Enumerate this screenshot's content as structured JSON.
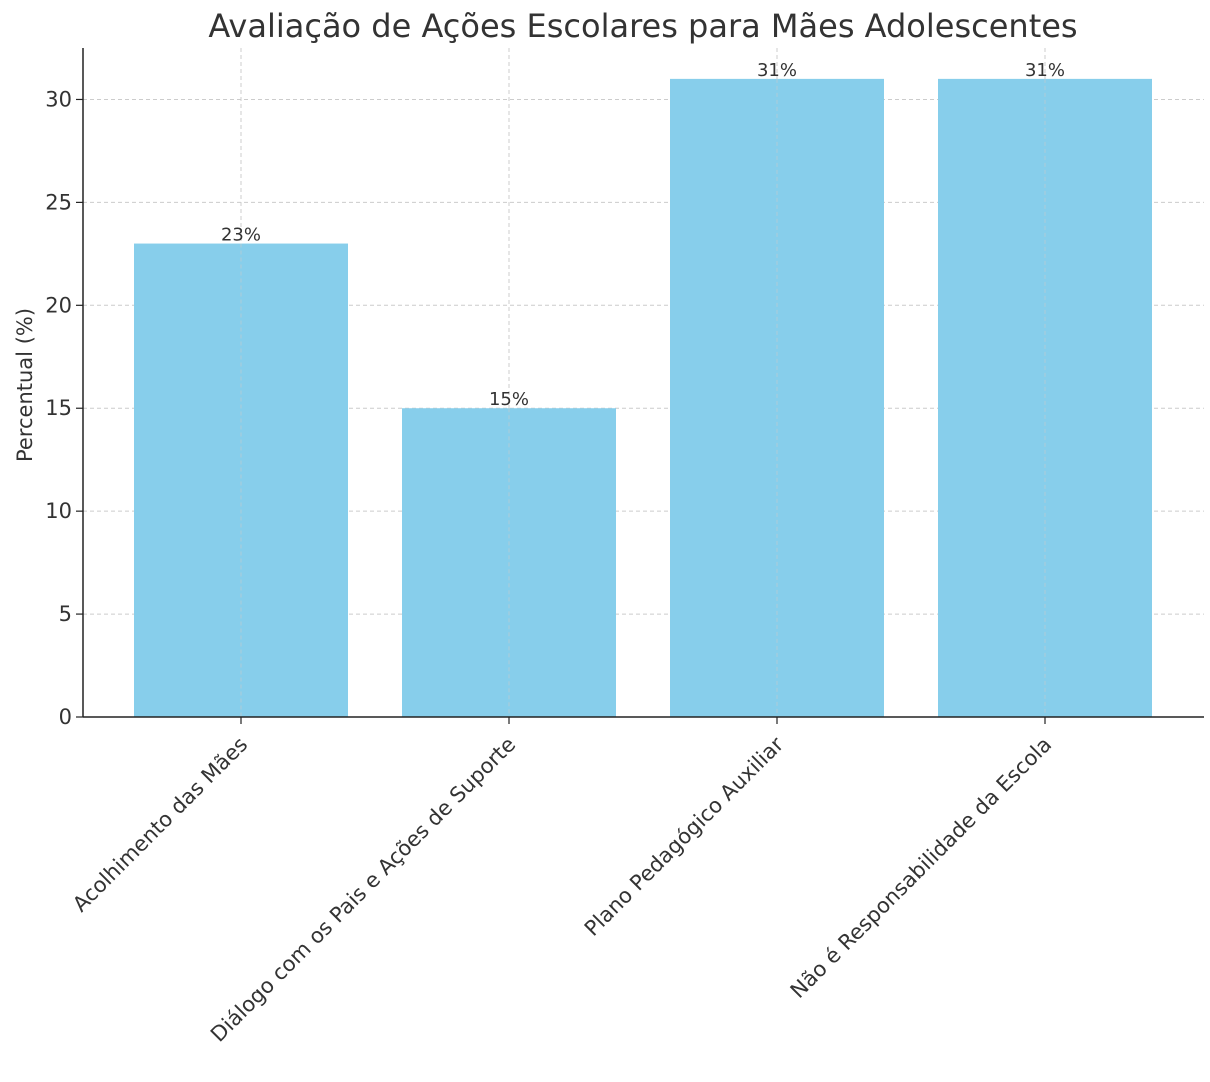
{
  "chart_data": {
    "type": "bar",
    "title": "Avaliação de Ações Escolares para Mães Adolescentes",
    "xlabel": "",
    "ylabel": "Percentual (%)",
    "categories": [
      "Acolhimento das Mães",
      "Diálogo com os Pais e Ações de Suporte",
      "Plano Pedagógico Auxiliar",
      "Não é Responsabilidade da Escola"
    ],
    "values": [
      23,
      15,
      31,
      31
    ],
    "data_labels": [
      "23%",
      "15%",
      "31%",
      "31%"
    ],
    "ylim": [
      0,
      32.5
    ],
    "yticks": [
      0,
      5,
      10,
      15,
      20,
      25,
      30
    ],
    "grid": true,
    "bar_color": "#87CEEB",
    "legend": "none"
  }
}
